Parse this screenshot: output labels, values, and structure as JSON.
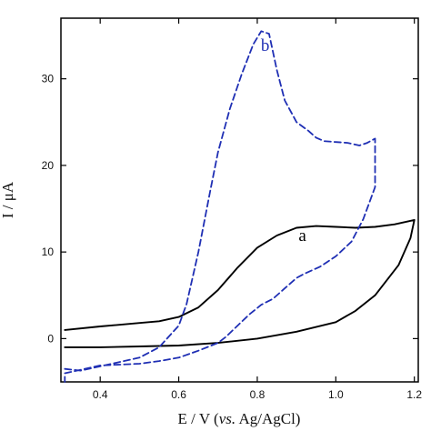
{
  "chart_data": {
    "type": "line",
    "title": "",
    "xlabel_prefix": "E / V (",
    "xlabel_italic": "vs.",
    "xlabel_suffix": " Ag/AgCl)",
    "ylabel": "I / μA",
    "xlim": [
      0.3,
      1.21
    ],
    "ylim": [
      -5,
      37
    ],
    "xticks": [
      0.4,
      0.6,
      0.8,
      1.0,
      1.2
    ],
    "xtick_labels": [
      "0.4",
      "0.6",
      "0.8",
      "1.0",
      "1.2"
    ],
    "yticks": [
      0,
      10,
      20,
      30
    ],
    "ytick_labels": [
      "0",
      "10",
      "20",
      "30"
    ],
    "grid": false,
    "series": [
      {
        "name": "a",
        "color": "#000000",
        "line_style": "solid",
        "label_position": [
          0.915,
          11.3
        ],
        "x": [
          0.31,
          0.4,
          0.5,
          0.55,
          0.6,
          0.65,
          0.7,
          0.75,
          0.8,
          0.85,
          0.9,
          0.95,
          1.0,
          1.05,
          1.1,
          1.15,
          1.2,
          1.19,
          1.16,
          1.1,
          1.05,
          1.0,
          0.9,
          0.8,
          0.7,
          0.6,
          0.5,
          0.4,
          0.31
        ],
        "y": [
          1.0,
          1.4,
          1.8,
          2.0,
          2.5,
          3.6,
          5.6,
          8.2,
          10.5,
          11.9,
          12.8,
          13.0,
          12.9,
          12.8,
          12.9,
          13.2,
          13.7,
          11.6,
          8.5,
          5.0,
          3.2,
          1.9,
          0.8,
          0.0,
          -0.5,
          -0.8,
          -0.9,
          -1.0,
          -1.0
        ]
      },
      {
        "name": "b",
        "color": "#1f2fb4",
        "line_style": "dashed",
        "label_position": [
          0.82,
          33.2
        ],
        "x": [
          0.31,
          0.35,
          0.4,
          0.5,
          0.55,
          0.6,
          0.62,
          0.65,
          0.68,
          0.7,
          0.73,
          0.76,
          0.79,
          0.81,
          0.83,
          0.85,
          0.87,
          0.9,
          0.93,
          0.95,
          0.97,
          1.0,
          1.03,
          1.06,
          1.08,
          1.1,
          1.1,
          1.07,
          1.04,
          1.0,
          0.96,
          0.92,
          0.9,
          0.87,
          0.84,
          0.81,
          0.78,
          0.75,
          0.72,
          0.7,
          0.65,
          0.6,
          0.55,
          0.5,
          0.45,
          0.4,
          0.35,
          0.31,
          0.31
        ],
        "y": [
          -3.5,
          -3.7,
          -3.2,
          -2.2,
          -1.0,
          1.5,
          4.0,
          10.0,
          17.0,
          21.5,
          26.5,
          30.5,
          34.0,
          35.5,
          35.2,
          31.0,
          27.5,
          25.0,
          24.0,
          23.2,
          22.8,
          22.7,
          22.6,
          22.3,
          22.6,
          23.1,
          17.5,
          13.8,
          11.2,
          9.5,
          8.3,
          7.5,
          7.0,
          5.8,
          4.6,
          3.9,
          2.8,
          1.5,
          0.2,
          -0.5,
          -1.4,
          -2.2,
          -2.6,
          -2.9,
          -3.0,
          -3.1,
          -3.6,
          -4.0,
          -5.0
        ]
      }
    ]
  }
}
